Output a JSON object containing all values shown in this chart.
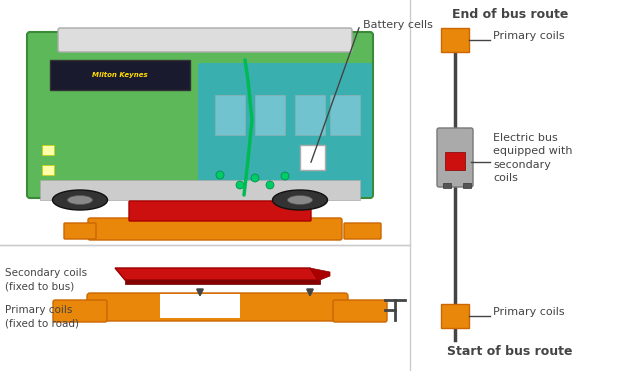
{
  "bg_color": "#ffffff",
  "divider_color": "#cccccc",
  "orange_color": "#E8870A",
  "red_color": "#CC1010",
  "dark_gray": "#444444",
  "mid_gray": "#888888",
  "light_gray": "#bbbbbb",
  "bus_body_color": "#aaaaaa",
  "title_end": "End of bus route",
  "title_start": "Start of bus route",
  "label_primary": "Primary coils",
  "label_secondary_coils": "Secondary coils\n(fixed to bus)",
  "label_primary_road": "Primary coils\n(fixed to road)",
  "label_bus_equipped": "Electric bus\nequipped with\nsecondary\ncoils",
  "label_battery": "Battery cells",
  "font_family": "sans-serif"
}
